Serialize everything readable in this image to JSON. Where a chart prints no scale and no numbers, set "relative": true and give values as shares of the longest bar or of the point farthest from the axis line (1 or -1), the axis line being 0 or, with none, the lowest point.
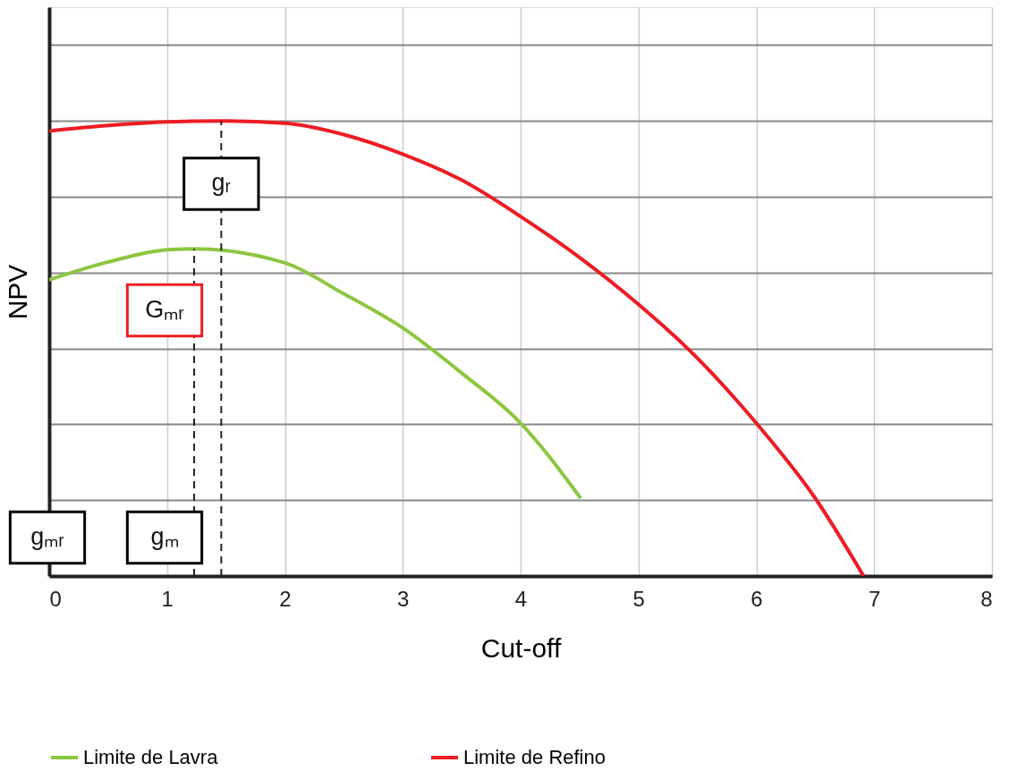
{
  "chart_data": {
    "type": "line",
    "relative": true,
    "xlabel": "Cut-off",
    "ylabel": "NPV",
    "xlim": [
      0,
      8
    ],
    "xticks": [
      0,
      1,
      2,
      3,
      4,
      5,
      6,
      7,
      8
    ],
    "grid": true,
    "legend": "bottom",
    "line_style": "solid",
    "marker": "none",
    "series": [
      {
        "name": "Limite de Lavra",
        "color": "#8dc63f",
        "x": [
          0,
          0.5,
          1,
          1.23,
          2,
          2.5,
          3,
          3.5,
          4,
          4.51
        ],
        "values": [
          0.651,
          0.69,
          0.717,
          0.719,
          0.688,
          0.62,
          0.545,
          0.446,
          0.336,
          0.171
        ]
      },
      {
        "name": "Limite de Refino",
        "color": "#ed1c24",
        "x": [
          0,
          0.5,
          1,
          1.46,
          2,
          2.5,
          3,
          3.5,
          4,
          4.5,
          5,
          5.5,
          6,
          6.5,
          6.91
        ],
        "values": [
          0.978,
          0.99,
          0.998,
          1.0,
          0.995,
          0.97,
          0.927,
          0.87,
          0.79,
          0.7,
          0.597,
          0.479,
          0.336,
          0.171,
          0
        ]
      },
      {
        "type": "line",
        "color": "#222222",
        "line_style": "dashed",
        "x": [
          1.23,
          1.23
        ],
        "values": [
          0,
          0.719
        ]
      },
      {
        "type": "line",
        "color": "#222222",
        "line_style": "dashed",
        "x": [
          1.46,
          1.46
        ],
        "values": [
          0,
          1.0
        ]
      }
    ],
    "annotations": [
      {
        "text": "gᵣ",
        "x": 1.46,
        "y": 0.862
      },
      "Gₘᵣ",
      "gₘᵣ",
      "gₘ"
    ]
  }
}
